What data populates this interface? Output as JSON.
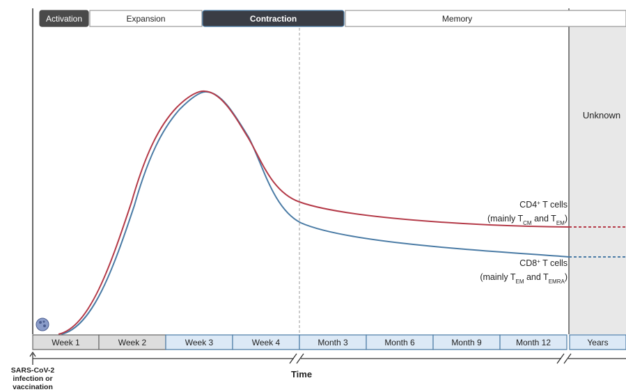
{
  "phases": [
    "Activation",
    "Expansion",
    "Contraction",
    "Memory"
  ],
  "unknown": "Unknown",
  "curves": [
    {
      "name": [
        "CD4",
        "+",
        " T cells"
      ],
      "detail": [
        "(mainly T",
        "CM",
        " and T",
        "EM",
        ")"
      ]
    },
    {
      "name": [
        "CD8",
        "+",
        " T cells"
      ],
      "detail": [
        "(mainly T",
        "EM",
        " and T",
        "EMRA",
        ")"
      ]
    }
  ],
  "time_bins": [
    "Week 1",
    "Week 2",
    "Week 3",
    "Week 4",
    "Month 3",
    "Month 6",
    "Month 9",
    "Month 12",
    "Years"
  ],
  "axis_label": "Time",
  "origin_label": [
    "SARS-CoV-2",
    "infection or",
    "vaccination"
  ]
}
